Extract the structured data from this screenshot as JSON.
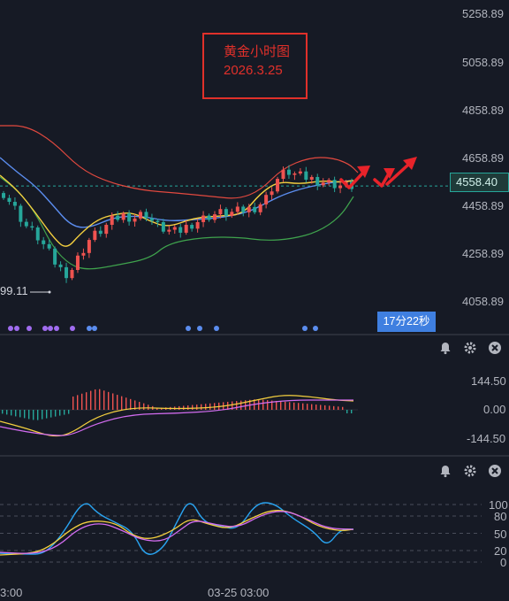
{
  "annotation": {
    "line1": "黄金小时图",
    "line2": "2026.3.25"
  },
  "main_pane": {
    "y_ticks": [
      "5258.89",
      "5058.89",
      "4858.89",
      "4658.89",
      "4458.89",
      "4258.89",
      "4058.89"
    ],
    "last_price": "4558.40",
    "countdown": "17分22秒",
    "low_label": "99.11"
  },
  "macd_pane": {
    "y_ticks": [
      "144.50",
      "0.00",
      "-144.50"
    ]
  },
  "kdj_pane": {
    "y_ticks": [
      "100",
      "80",
      "50",
      "20",
      "0"
    ]
  },
  "x_axis": {
    "labels": [
      "3:00",
      "03-25 03:00"
    ]
  },
  "colors": {
    "up": "#ef5350",
    "down": "#26a69a",
    "background": "#161a25",
    "boll_upper": "#e2493f",
    "boll_lower": "#3fa34d",
    "ma_fast": "#f4d03f",
    "ma_slow": "#5b8def",
    "arrow": "#e8232a",
    "dif": "#f4d03f",
    "dea": "#d26cf0",
    "kdj_k": "#29a3f0",
    "kdj_d": "#f4d03f",
    "kdj_j": "#d26cf0"
  },
  "icons": [
    "bell-icon",
    "gear-icon",
    "close-icon"
  ],
  "chart_data": [
    {
      "type": "candlestick",
      "y_range": [
        3958.89,
        5308.89
      ],
      "approx_close_path": [
        4530,
        4470,
        4400,
        4360,
        4300,
        4230,
        4200,
        4280,
        4350,
        4380,
        4420,
        4440,
        4430,
        4450,
        4400,
        4380,
        4370,
        4400,
        4420,
        4440,
        4450,
        4450,
        4460,
        4470,
        4500,
        4580,
        4620,
        4600,
        4590,
        4580,
        4570,
        4560,
        4558.4
      ],
      "last_price": 4558.4
    },
    {
      "type": "bar",
      "name": "MACD",
      "y_range": [
        -144.5,
        144.5
      ]
    },
    {
      "type": "line",
      "name": "KDJ",
      "y_range": [
        0,
        100
      ],
      "levels": [
        100,
        80,
        50,
        20,
        0
      ]
    }
  ]
}
